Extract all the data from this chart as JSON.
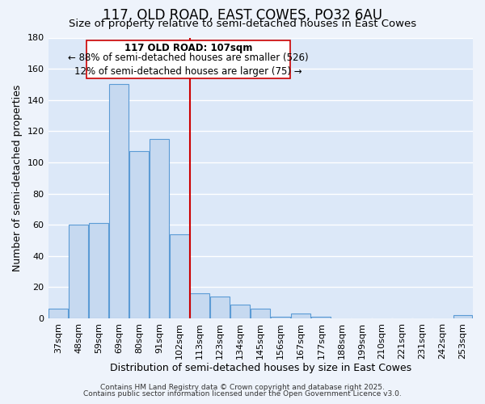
{
  "title": "117, OLD ROAD, EAST COWES, PO32 6AU",
  "subtitle": "Size of property relative to semi-detached houses in East Cowes",
  "xlabel": "Distribution of semi-detached houses by size in East Cowes",
  "ylabel": "Number of semi-detached properties",
  "categories": [
    "37sqm",
    "48sqm",
    "59sqm",
    "69sqm",
    "80sqm",
    "91sqm",
    "102sqm",
    "113sqm",
    "123sqm",
    "134sqm",
    "145sqm",
    "156sqm",
    "167sqm",
    "177sqm",
    "188sqm",
    "199sqm",
    "210sqm",
    "221sqm",
    "231sqm",
    "242sqm",
    "253sqm"
  ],
  "values": [
    6,
    60,
    61,
    150,
    107,
    115,
    54,
    16,
    14,
    9,
    6,
    1,
    3,
    1,
    0,
    0,
    0,
    0,
    0,
    0,
    2
  ],
  "bar_color": "#c6d9f0",
  "bar_edge_color": "#5b9bd5",
  "highlight_line_index": 6,
  "highlight_color": "#cc0000",
  "property_label": "117 OLD ROAD: 107sqm",
  "pct_smaller": 88,
  "count_smaller": 526,
  "pct_larger": 12,
  "count_larger": 75,
  "ylim": [
    0,
    180
  ],
  "yticks": [
    0,
    20,
    40,
    60,
    80,
    100,
    120,
    140,
    160,
    180
  ],
  "background_color": "#eef3fb",
  "plot_bg_color": "#dce8f8",
  "grid_color": "#ffffff",
  "footer1": "Contains HM Land Registry data © Crown copyright and database right 2025.",
  "footer2": "Contains public sector information licensed under the Open Government Licence v3.0.",
  "title_fontsize": 12,
  "subtitle_fontsize": 9.5,
  "axis_label_fontsize": 9,
  "tick_fontsize": 8,
  "annotation_fontsize": 8.5,
  "footer_fontsize": 6.5
}
